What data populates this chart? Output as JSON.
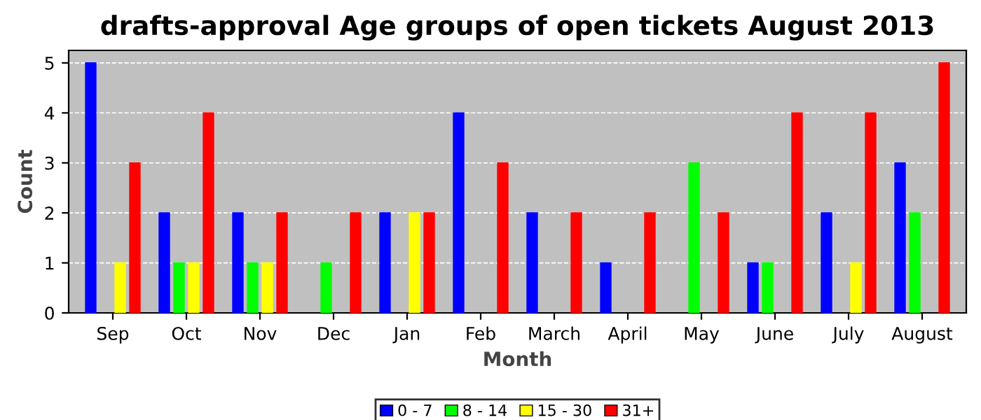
{
  "chart_data": {
    "type": "bar",
    "title": "drafts-approval Age groups of open tickets August 2013",
    "xlabel": "Month",
    "ylabel": "Count",
    "categories": [
      "Sep",
      "Oct",
      "Nov",
      "Dec",
      "Jan",
      "Feb",
      "March",
      "April",
      "May",
      "June",
      "July",
      "August"
    ],
    "series": [
      {
        "name": "0 - 7",
        "color": "#0000ff",
        "values": [
          5,
          2,
          2,
          0,
          2,
          4,
          2,
          1,
          0,
          1,
          2,
          3
        ]
      },
      {
        "name": "8 - 14",
        "color": "#00ff00",
        "values": [
          0,
          1,
          1,
          1,
          0,
          0,
          0,
          0,
          3,
          1,
          0,
          2
        ]
      },
      {
        "name": "15 - 30",
        "color": "#ffff00",
        "values": [
          1,
          1,
          1,
          0,
          2,
          0,
          0,
          0,
          0,
          0,
          1,
          0
        ]
      },
      {
        "name": "31+",
        "color": "#ff0000",
        "values": [
          3,
          4,
          2,
          2,
          2,
          3,
          2,
          2,
          2,
          4,
          4,
          5
        ]
      }
    ],
    "ylim": [
      0,
      5.25
    ],
    "yticks": [
      0,
      1,
      2,
      3,
      4,
      5
    ],
    "grid": "y",
    "legend": "bottom"
  }
}
